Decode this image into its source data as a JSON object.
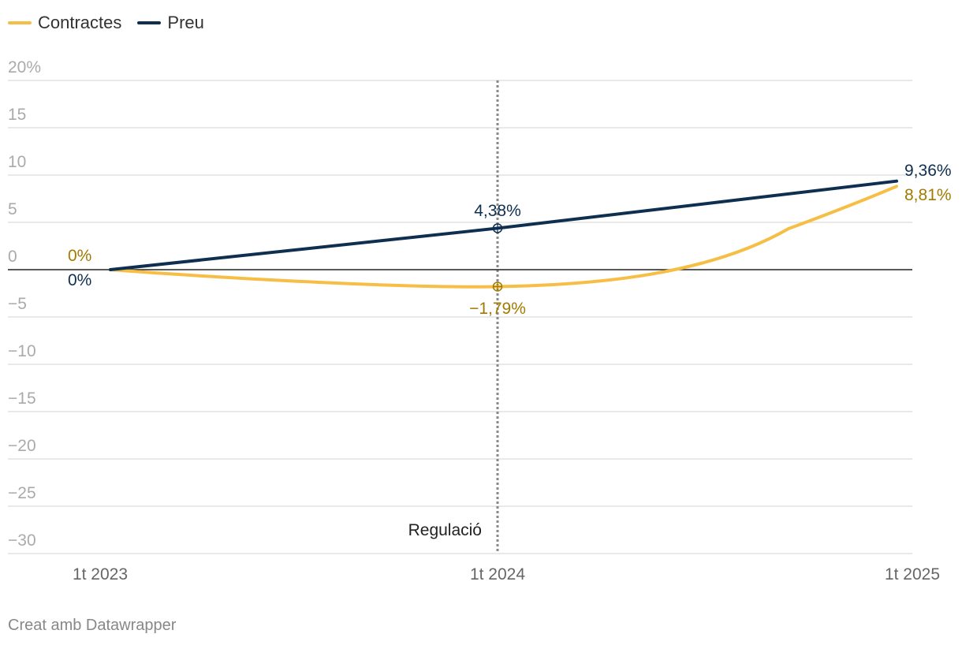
{
  "chart_data": {
    "type": "line",
    "x": [
      "1t 2023",
      "1t 2024",
      "1t 2025"
    ],
    "series": [
      {
        "name": "Contractes",
        "color": "#f6be45",
        "label_color": "#a37a00",
        "values": [
          0,
          -1.79,
          8.81
        ],
        "labels": [
          "0%",
          "−1,79%",
          "8,81%"
        ]
      },
      {
        "name": "Preu",
        "color": "#0e2f50",
        "label_color": "#0e2f50",
        "values": [
          0,
          4.38,
          9.36
        ],
        "labels": [
          "0%",
          "4,38%",
          "9,36%"
        ]
      }
    ],
    "ylim": [
      -30,
      20
    ],
    "yticks": [
      20,
      15,
      10,
      5,
      0,
      -5,
      -10,
      -15,
      -20,
      -25,
      -30
    ],
    "ytick_labels": [
      "20%",
      "15",
      "10",
      "5",
      "0",
      "−5",
      "−10",
      "−15",
      "−20",
      "−25",
      "−30"
    ],
    "annotation": {
      "x": "1t 2024",
      "label": "Regulació"
    },
    "grid": true,
    "legend_position": "top-left"
  },
  "footer": {
    "credit": "Creat amb Datawrapper"
  },
  "colors": {
    "grid": "#e2e2e2",
    "zero_line": "#222222",
    "tick_text": "#aaaaaa",
    "axis_text": "#666666",
    "annotation_line": "#888888"
  }
}
